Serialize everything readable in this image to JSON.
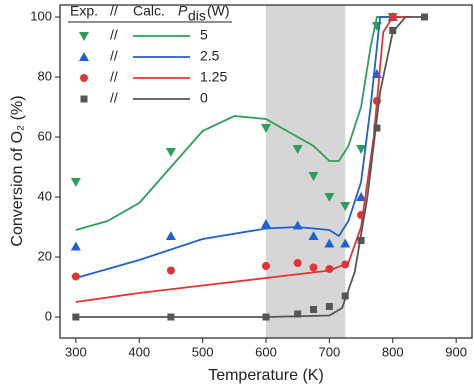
{
  "chart_data": {
    "type": "scatter-line",
    "xlabel": "Temperature (K)",
    "ylabel": "Conversion of O₂ (%)",
    "xlim": [
      275,
      925
    ],
    "ylim": [
      -7,
      104
    ],
    "xticks": [
      300,
      400,
      500,
      600,
      700,
      800,
      900
    ],
    "yticks": [
      0,
      20,
      40,
      60,
      80,
      100
    ],
    "shaded_region": [
      600,
      725
    ],
    "legend": {
      "exp": "Exp.",
      "sep": "//",
      "calc": "Calc.",
      "p": "P",
      "sub": "dis",
      "unit": "(W)"
    },
    "series": [
      {
        "name": "5",
        "color": "#2e9e5b",
        "marker": "triangle-down",
        "exp": {
          "x": [
            300,
            450,
            600,
            650,
            675,
            700,
            725,
            750,
            775,
            800
          ],
          "y": [
            45,
            55,
            63,
            56,
            47,
            40,
            37,
            56,
            97,
            100
          ]
        },
        "calc": {
          "x": [
            300,
            350,
            400,
            450,
            500,
            550,
            600,
            650,
            675,
            700,
            715,
            730,
            750,
            765,
            775,
            800
          ],
          "y": [
            29,
            32,
            38,
            50,
            62,
            67,
            66,
            60,
            57,
            52,
            52,
            57,
            70,
            90,
            100,
            100
          ]
        }
      },
      {
        "name": "2.5",
        "color": "#2060d0",
        "marker": "triangle-up",
        "exp": {
          "x": [
            300,
            450,
            600,
            650,
            675,
            700,
            725,
            750,
            775,
            800
          ],
          "y": [
            23.5,
            27,
            31,
            30.5,
            27,
            24.5,
            24.5,
            40,
            81,
            100
          ]
        },
        "calc": {
          "x": [
            300,
            400,
            500,
            600,
            650,
            700,
            715,
            730,
            750,
            765,
            780,
            820
          ],
          "y": [
            13,
            19,
            26,
            29.5,
            30,
            29,
            27,
            32,
            45,
            70,
            100,
            100
          ]
        }
      },
      {
        "name": "1.25",
        "color": "#e03535",
        "marker": "circle",
        "exp": {
          "x": [
            300,
            450,
            600,
            650,
            675,
            700,
            725,
            750,
            775,
            800
          ],
          "y": [
            13.5,
            15.5,
            17,
            18,
            16.5,
            16,
            17.5,
            34,
            72,
            100
          ]
        },
        "calc": {
          "x": [
            300,
            400,
            500,
            600,
            700,
            730,
            750,
            770,
            785,
            800,
            830
          ],
          "y": [
            5,
            8,
            10.5,
            13,
            15.5,
            18,
            30,
            60,
            95,
            100,
            100
          ]
        }
      },
      {
        "name": "0",
        "color": "#555555",
        "marker": "square",
        "exp": {
          "x": [
            300,
            450,
            600,
            650,
            675,
            700,
            725,
            750,
            775,
            800,
            850
          ],
          "y": [
            0,
            0,
            0,
            1,
            2.5,
            3.5,
            7,
            25.5,
            63,
            95.5,
            100
          ]
        },
        "calc": {
          "x": [
            300,
            600,
            700,
            720,
            740,
            760,
            780,
            800,
            820,
            850
          ],
          "y": [
            0,
            0,
            0.5,
            3,
            15,
            40,
            75,
            95,
            100,
            100
          ]
        }
      }
    ]
  }
}
